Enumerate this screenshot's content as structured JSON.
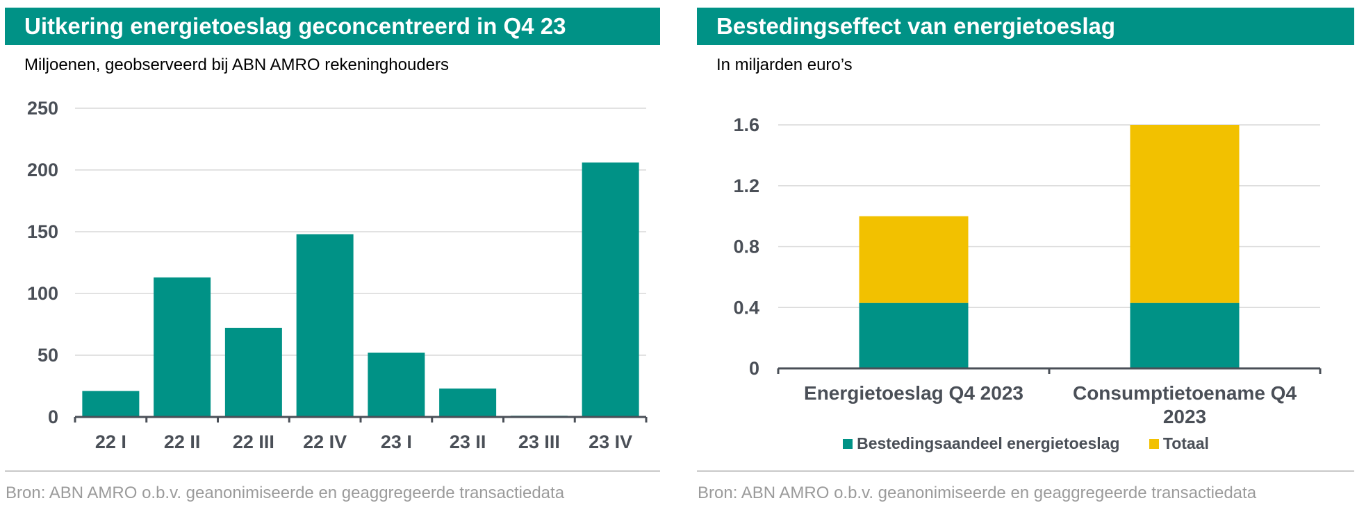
{
  "colors": {
    "teal": "#009286",
    "yellow": "#f2c100",
    "axis_text": "#4a4f57",
    "grid": "#d9d9d9"
  },
  "left": {
    "title": "Uitkering energietoeslag geconcentreerd in Q4 23",
    "subtitle": "Miljoenen, geobserveerd bij ABN AMRO rekeninghouders",
    "source": "Bron: ABN AMRO o.b.v. geanonimiseerde en geaggregeerde transactiedata"
  },
  "right": {
    "title": "Bestedingseffect van energietoeslag",
    "subtitle": "In miljarden euro’s",
    "source": "Bron: ABN AMRO o.b.v. geanonimiseerde en geaggregeerde transactiedata"
  },
  "chart_data": [
    {
      "type": "bar",
      "title": "Uitkering energietoeslag geconcentreerd in Q4 23",
      "categories": [
        "22 I",
        "22 II",
        "22 III",
        "22 IV",
        "23 I",
        "23 II",
        "23 III",
        "23 IV"
      ],
      "values": [
        21,
        113,
        72,
        148,
        52,
        23,
        1,
        206
      ],
      "ylim": [
        0,
        250
      ],
      "yticks": [
        "0",
        "50",
        "100",
        "150",
        "200",
        "250"
      ],
      "grid": true
    },
    {
      "type": "bar",
      "stacked": true,
      "title": "Bestedingseffect van energietoeslag",
      "categories": [
        "Energietoeslag Q4 2023",
        "Consumptietoename Q4 2023"
      ],
      "category_lines": [
        [
          "Energietoeslag Q4 2023"
        ],
        [
          "Consumptietoename Q4",
          "2023"
        ]
      ],
      "series": [
        {
          "name": "Bestedingsaandeel energietoeslag",
          "values": [
            0.43,
            0.43
          ]
        },
        {
          "name": "Totaal",
          "values": [
            0.57,
            1.17
          ]
        }
      ],
      "ylim": [
        0,
        1.6
      ],
      "yticks": [
        "0",
        "0.4",
        "0.8",
        "1.2",
        "1.6"
      ],
      "legend": "bottom",
      "grid": true
    }
  ]
}
